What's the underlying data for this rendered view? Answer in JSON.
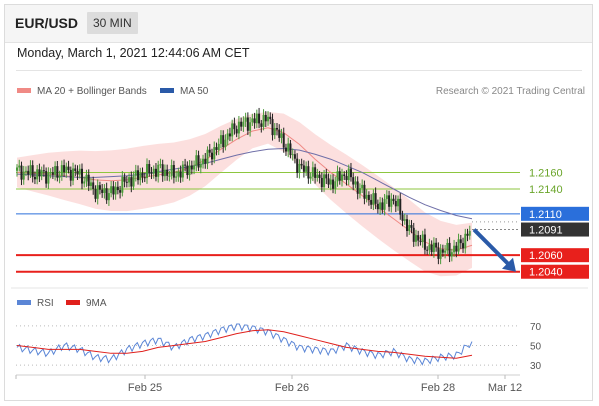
{
  "header": {
    "pair": "EUR/USD",
    "timeframe": "30 MIN",
    "datetime": "Monday, March 1, 2021 12:44:06 AM CET"
  },
  "legend": {
    "bollinger": "MA 20 + Bollinger Bands",
    "ma50": "MA 50",
    "credit": "Research © 2021 Trading Central"
  },
  "colors": {
    "green_level": "#8dc63f",
    "blue_level": "#2a6fdb",
    "red_level": "#e8201c",
    "last_price": "#333333",
    "bands": "#f9c5c3",
    "ma20": "#f08a85",
    "ma50": "#6f6fa8",
    "rsi": "#5b86d6",
    "rsi_ma": "#e0201c",
    "forecast_arrow": "#2a5aa8"
  },
  "chart_data": [
    {
      "type": "line",
      "title": "",
      "ylim": [
        1.203,
        1.225
      ],
      "x_ticks": [
        "Feb 25",
        "Feb 26",
        "Feb 28",
        "Mar 12"
      ],
      "levels": [
        {
          "value": 1.216,
          "label": "1.2160",
          "kind": "resistance",
          "color": "#8dc63f"
        },
        {
          "value": 1.214,
          "label": "1.2140",
          "kind": "resistance",
          "color": "#8dc63f"
        },
        {
          "value": 1.211,
          "label": "1.2110",
          "kind": "pivot",
          "color": "#2a6fdb"
        },
        {
          "value": 1.2091,
          "label": "1.2091",
          "kind": "last",
          "color": "#333333"
        },
        {
          "value": 1.206,
          "label": "1.2060",
          "kind": "support",
          "color": "#e8201c"
        },
        {
          "value": 1.204,
          "label": "1.2040",
          "kind": "support",
          "color": "#e8201c"
        }
      ],
      "series": [
        {
          "name": "MA 20 + Bollinger Bands",
          "kind": "ma20",
          "values": [
            1.216,
            1.2159,
            1.2158,
            1.2156,
            1.2154,
            1.2151,
            1.215,
            1.2151,
            1.2154,
            1.2157,
            1.216,
            1.2166,
            1.2175,
            1.2188,
            1.22,
            1.221,
            1.2214,
            1.2208,
            1.2194,
            1.2176,
            1.216,
            1.2146,
            1.2132,
            1.2118,
            1.2104,
            1.209,
            1.2076,
            1.2068,
            1.2066,
            1.2072
          ]
        },
        {
          "name": "MA 50",
          "kind": "ma50",
          "values": [
            1.2158,
            1.2157,
            1.2156,
            1.2155,
            1.2154,
            1.2154,
            1.2155,
            1.2156,
            1.2158,
            1.2161,
            1.2164,
            1.2167,
            1.2171,
            1.2176,
            1.2181,
            1.2185,
            1.2188,
            1.2189,
            1.2187,
            1.2182,
            1.2176,
            1.2168,
            1.216,
            1.215,
            1.214,
            1.213,
            1.2121,
            1.2114,
            1.2108,
            1.2104
          ]
        },
        {
          "name": "Price",
          "kind": "price",
          "values": [
            1.2162,
            1.2159,
            1.2157,
            1.2163,
            1.2158,
            1.2138,
            1.2135,
            1.215,
            1.2158,
            1.2164,
            1.2157,
            1.2166,
            1.2176,
            1.2196,
            1.2216,
            1.2222,
            1.2224,
            1.2196,
            1.2166,
            1.2156,
            1.2147,
            1.2159,
            1.2136,
            1.212,
            1.2128,
            1.209,
            1.2072,
            1.2064,
            1.2068,
            1.2091
          ]
        }
      ],
      "forecast_arrow": {
        "from": 1.2091,
        "to": 1.204
      }
    },
    {
      "type": "line",
      "title": "",
      "ylim": [
        25,
        80
      ],
      "y_ticks": [
        70,
        50,
        30
      ],
      "series": [
        {
          "name": "RSI",
          "values": [
            48,
            45,
            42,
            50,
            46,
            38,
            36,
            46,
            52,
            56,
            48,
            56,
            60,
            66,
            70,
            68,
            64,
            56,
            48,
            46,
            44,
            50,
            44,
            40,
            44,
            36,
            34,
            38,
            40,
            54
          ]
        },
        {
          "name": "9MA",
          "values": [
            50,
            48,
            46,
            46,
            46,
            44,
            42,
            42,
            44,
            48,
            50,
            52,
            54,
            58,
            62,
            65,
            66,
            64,
            60,
            56,
            52,
            48,
            46,
            44,
            43,
            41,
            39,
            38,
            37,
            40
          ]
        }
      ]
    }
  ]
}
